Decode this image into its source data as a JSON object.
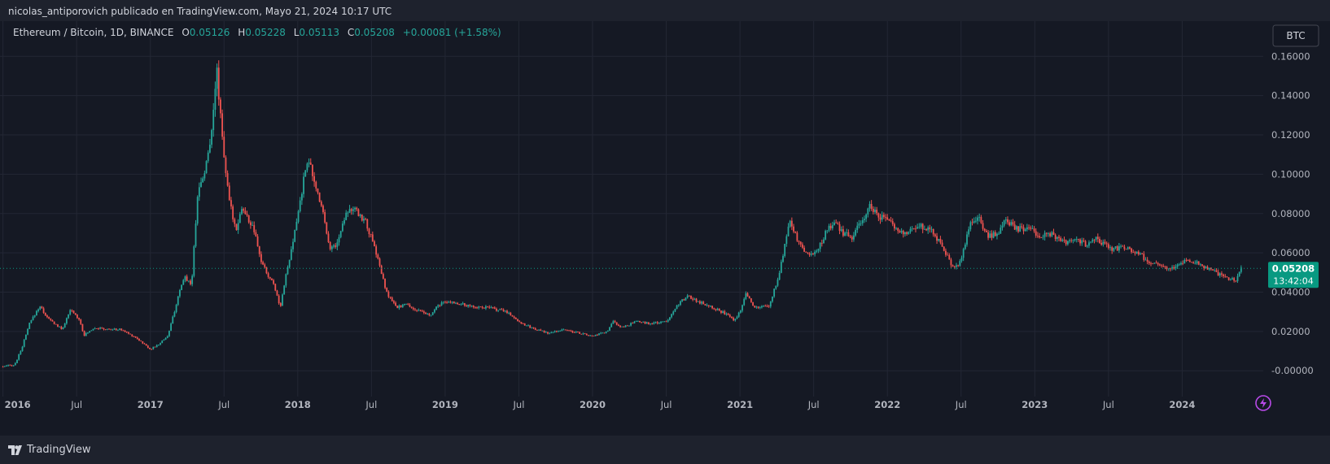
{
  "header": {
    "published": "nicolas_antiporovich publicado en TradingView.com, Mayo 21, 2024 10:17 UTC"
  },
  "legend": {
    "symbol": "Ethereum / Bitcoin, 1D, BINANCE",
    "o_label": "O",
    "o": "0.05126",
    "h_label": "H",
    "h": "0.05228",
    "l_label": "L",
    "l": "0.05113",
    "c_label": "C",
    "c": "0.05208",
    "change": "+0.00081 (+1.58%)"
  },
  "currency_button": "BTC",
  "price_badge": {
    "price": "0.05208",
    "countdown": "13:42:04"
  },
  "footer": {
    "brand": "TradingView"
  },
  "colors": {
    "up": "#26a69a",
    "down": "#ef5350",
    "background": "#131722",
    "grid": "#232734",
    "axis_text": "#b2b5be",
    "badge": "#089981"
  },
  "icons": {
    "brand": "tradingview-logo-icon",
    "lightning": "lightning-icon"
  },
  "chart_data": {
    "type": "candlestick",
    "title": "Ethereum / Bitcoin, 1D, BINANCE",
    "y_ticks": [
      0.16,
      0.14,
      0.12,
      0.1,
      0.08,
      0.06,
      0.04,
      0.02,
      0.0
    ],
    "y_tick_labels": [
      "0.16000",
      "0.14000",
      "0.12000",
      "0.10000",
      "0.08000",
      "0.06000",
      "0.04000",
      "0.02000",
      "-0.00000"
    ],
    "ylim": [
      -0.009,
      0.1655
    ],
    "x_tick_labels": [
      "2016",
      "Jul",
      "2017",
      "Jul",
      "2018",
      "Jul",
      "2019",
      "Jul",
      "2020",
      "Jul",
      "2021",
      "Jul",
      "2022",
      "Jul",
      "2023",
      "Jul",
      "2024"
    ],
    "x_tick_years": [
      2016.0,
      2016.5,
      2017.0,
      2017.5,
      2018.0,
      2018.5,
      2019.0,
      2019.5,
      2020.0,
      2020.5,
      2021.0,
      2021.5,
      2022.0,
      2022.5,
      2023.0,
      2023.5,
      2024.0
    ],
    "xlim": [
      2015.98,
      2024.55
    ],
    "last_price": 0.05208,
    "series": [
      {
        "values": [
          [
            2016.0,
            0.002
          ],
          [
            2016.08,
            0.003
          ],
          [
            2016.13,
            0.012
          ],
          [
            2016.18,
            0.024
          ],
          [
            2016.25,
            0.033
          ],
          [
            2016.3,
            0.027
          ],
          [
            2016.4,
            0.021
          ],
          [
            2016.46,
            0.031
          ],
          [
            2016.52,
            0.026
          ],
          [
            2016.55,
            0.018
          ],
          [
            2016.62,
            0.022
          ],
          [
            2016.7,
            0.021
          ],
          [
            2016.8,
            0.021
          ],
          [
            2016.9,
            0.017
          ],
          [
            2017.0,
            0.011
          ],
          [
            2017.05,
            0.013
          ],
          [
            2017.12,
            0.018
          ],
          [
            2017.18,
            0.035
          ],
          [
            2017.23,
            0.048
          ],
          [
            2017.28,
            0.044
          ],
          [
            2017.32,
            0.09
          ],
          [
            2017.35,
            0.097
          ],
          [
            2017.4,
            0.112
          ],
          [
            2017.45,
            0.153
          ],
          [
            2017.5,
            0.11
          ],
          [
            2017.53,
            0.088
          ],
          [
            2017.58,
            0.072
          ],
          [
            2017.62,
            0.083
          ],
          [
            2017.67,
            0.076
          ],
          [
            2017.7,
            0.072
          ],
          [
            2017.75,
            0.056
          ],
          [
            2017.8,
            0.048
          ],
          [
            2017.84,
            0.044
          ],
          [
            2017.88,
            0.032
          ],
          [
            2017.91,
            0.045
          ],
          [
            2017.96,
            0.062
          ],
          [
            2018.02,
            0.088
          ],
          [
            2018.07,
            0.11
          ],
          [
            2018.1,
            0.098
          ],
          [
            2018.16,
            0.085
          ],
          [
            2018.22,
            0.062
          ],
          [
            2018.27,
            0.065
          ],
          [
            2018.33,
            0.082
          ],
          [
            2018.38,
            0.082
          ],
          [
            2018.46,
            0.076
          ],
          [
            2018.54,
            0.058
          ],
          [
            2018.6,
            0.04
          ],
          [
            2018.67,
            0.032
          ],
          [
            2018.73,
            0.034
          ],
          [
            2018.8,
            0.031
          ],
          [
            2018.9,
            0.028
          ],
          [
            2018.96,
            0.034
          ],
          [
            2019.05,
            0.035
          ],
          [
            2019.15,
            0.033
          ],
          [
            2019.3,
            0.032
          ],
          [
            2019.42,
            0.03
          ],
          [
            2019.5,
            0.025
          ],
          [
            2019.58,
            0.022
          ],
          [
            2019.7,
            0.019
          ],
          [
            2019.8,
            0.021
          ],
          [
            2019.92,
            0.019
          ],
          [
            2020.0,
            0.0175
          ],
          [
            2020.1,
            0.02
          ],
          [
            2020.14,
            0.025
          ],
          [
            2020.2,
            0.022
          ],
          [
            2020.3,
            0.025
          ],
          [
            2020.4,
            0.024
          ],
          [
            2020.5,
            0.025
          ],
          [
            2020.58,
            0.034
          ],
          [
            2020.65,
            0.038
          ],
          [
            2020.72,
            0.035
          ],
          [
            2020.8,
            0.033
          ],
          [
            2020.9,
            0.029
          ],
          [
            2020.96,
            0.026
          ],
          [
            2021.0,
            0.03
          ],
          [
            2021.04,
            0.04
          ],
          [
            2021.1,
            0.032
          ],
          [
            2021.2,
            0.033
          ],
          [
            2021.26,
            0.048
          ],
          [
            2021.3,
            0.062
          ],
          [
            2021.34,
            0.078
          ],
          [
            2021.38,
            0.068
          ],
          [
            2021.44,
            0.06
          ],
          [
            2021.52,
            0.06
          ],
          [
            2021.58,
            0.07
          ],
          [
            2021.64,
            0.076
          ],
          [
            2021.7,
            0.07
          ],
          [
            2021.76,
            0.068
          ],
          [
            2021.82,
            0.075
          ],
          [
            2021.88,
            0.084
          ],
          [
            2021.94,
            0.079
          ],
          [
            2022.0,
            0.077
          ],
          [
            2022.06,
            0.072
          ],
          [
            2022.12,
            0.07
          ],
          [
            2022.22,
            0.074
          ],
          [
            2022.3,
            0.072
          ],
          [
            2022.38,
            0.062
          ],
          [
            2022.45,
            0.052
          ],
          [
            2022.5,
            0.056
          ],
          [
            2022.55,
            0.073
          ],
          [
            2022.62,
            0.08
          ],
          [
            2022.67,
            0.069
          ],
          [
            2022.74,
            0.069
          ],
          [
            2022.8,
            0.076
          ],
          [
            2022.88,
            0.072
          ],
          [
            2022.96,
            0.072
          ],
          [
            2023.04,
            0.069
          ],
          [
            2023.12,
            0.069
          ],
          [
            2023.2,
            0.065
          ],
          [
            2023.28,
            0.066
          ],
          [
            2023.36,
            0.064
          ],
          [
            2023.42,
            0.067
          ],
          [
            2023.48,
            0.064
          ],
          [
            2023.52,
            0.062
          ],
          [
            2023.6,
            0.063
          ],
          [
            2023.7,
            0.06
          ],
          [
            2023.78,
            0.055
          ],
          [
            2023.86,
            0.053
          ],
          [
            2023.94,
            0.052
          ],
          [
            2024.0,
            0.055
          ],
          [
            2024.06,
            0.056
          ],
          [
            2024.12,
            0.054
          ],
          [
            2024.2,
            0.051
          ],
          [
            2024.28,
            0.048
          ],
          [
            2024.36,
            0.046
          ],
          [
            2024.4,
            0.052
          ]
        ]
      }
    ]
  }
}
